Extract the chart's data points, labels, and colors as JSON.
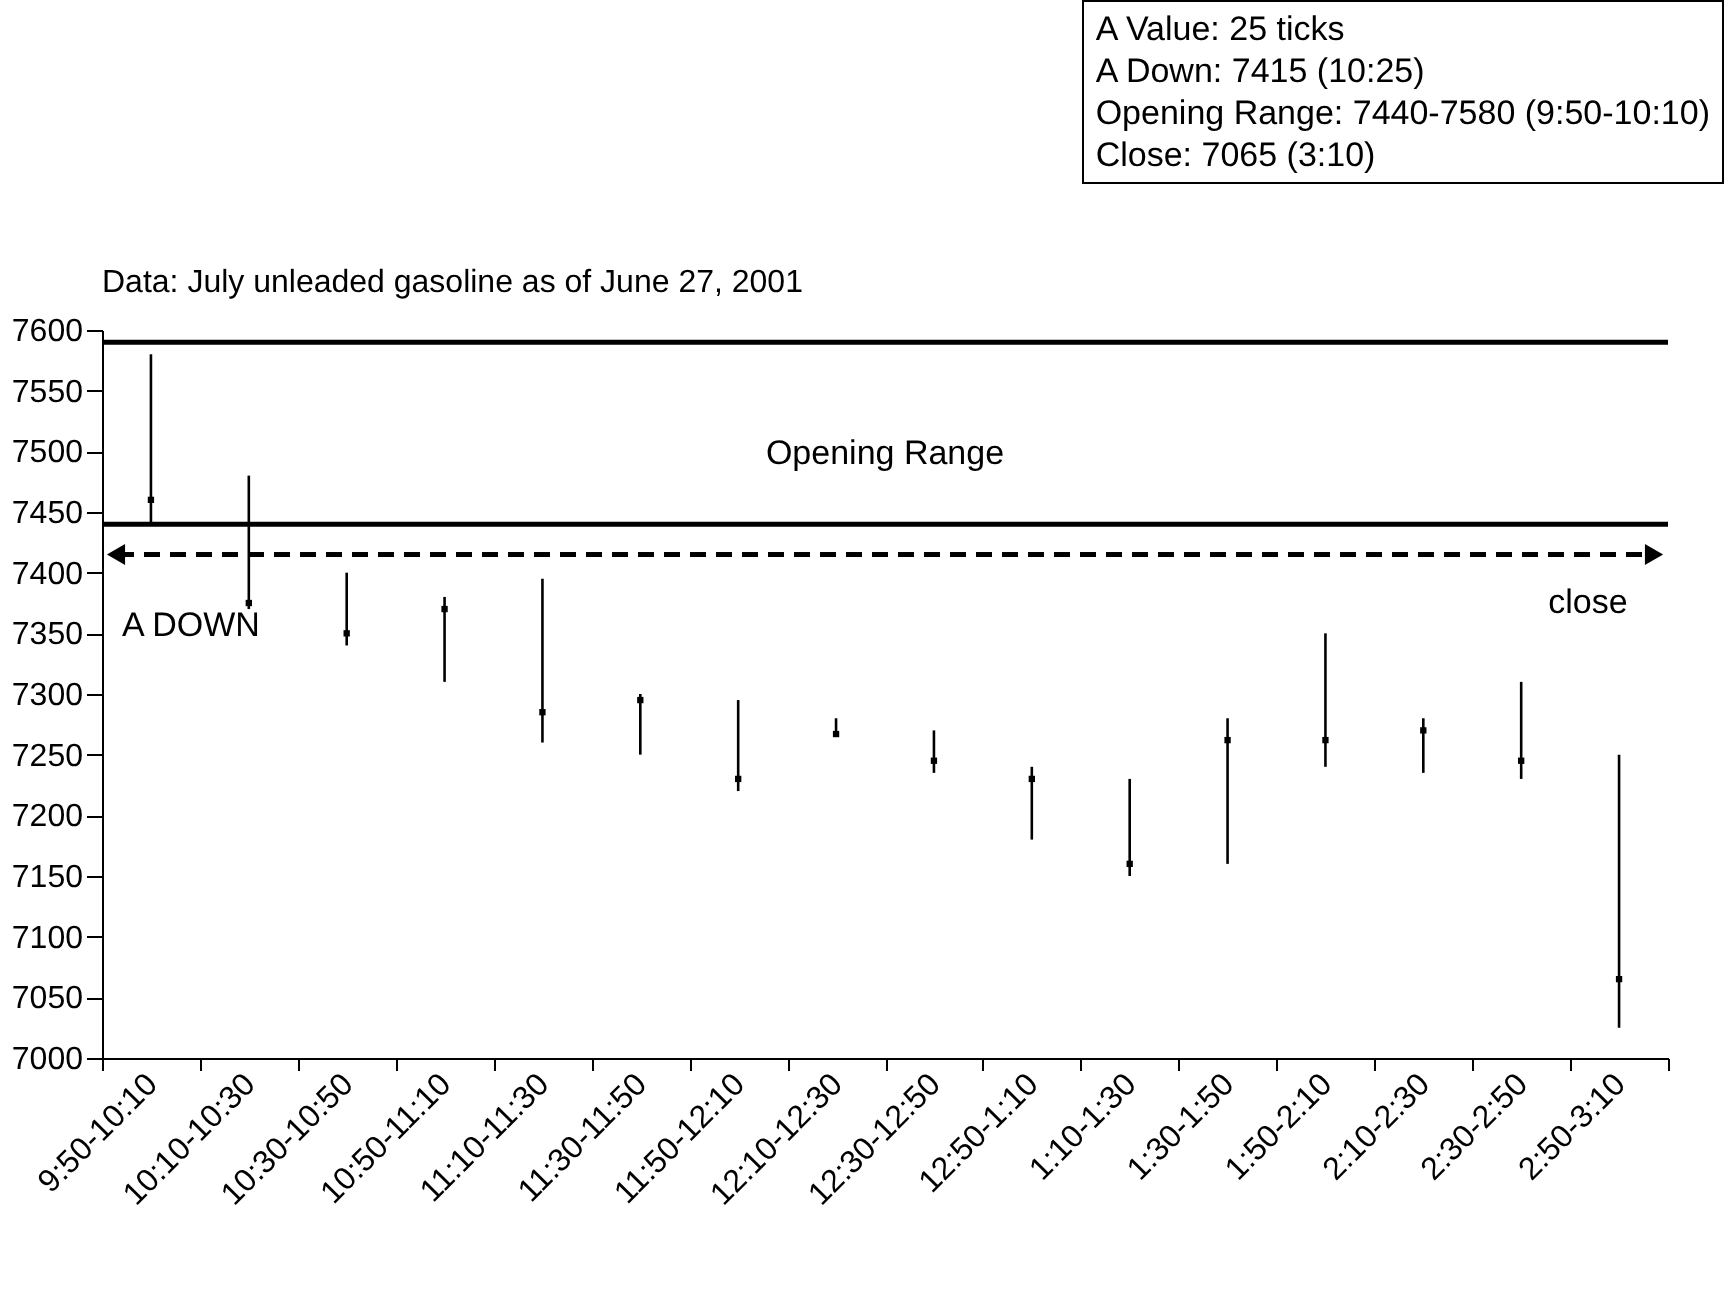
{
  "chart_data": {
    "type": "scatter",
    "marker": "square",
    "title": "Data: July unleaded gasoline as of June 27, 2001",
    "categories": [
      "9:50-10:10",
      "10:10-10:30",
      "10:30-10:50",
      "10:50-11:10",
      "11:10-11:30",
      "11:30-11:50",
      "11:50-12:10",
      "12:10-12:30",
      "12:30-12:50",
      "12:50-1:10",
      "1:10-1:30",
      "1:30-1:50",
      "1:50-2:10",
      "2:10-2:30",
      "2:30-2:50",
      "2:50-3:10"
    ],
    "values": [
      7460,
      7375,
      7350,
      7370,
      7285,
      7295,
      7230,
      7267,
      7245,
      7230,
      7160,
      7262,
      7262,
      7270,
      7245,
      7065
    ],
    "errors": [
      [
        7440,
        7580
      ],
      [
        7370,
        7480
      ],
      [
        7340,
        7400
      ],
      [
        7310,
        7380
      ],
      [
        7260,
        7395
      ],
      [
        7250,
        7300
      ],
      [
        7220,
        7295
      ],
      [
        7265,
        7280
      ],
      [
        7235,
        7270
      ],
      [
        7180,
        7240
      ],
      [
        7150,
        7230
      ],
      [
        7160,
        7280
      ],
      [
        7240,
        7350
      ],
      [
        7235,
        7280
      ],
      [
        7230,
        7310
      ],
      [
        7025,
        7250
      ]
    ],
    "color": "#000000",
    "ylim": [
      7000,
      7600
    ],
    "yticks": [
      7000,
      7050,
      7100,
      7150,
      7200,
      7250,
      7300,
      7350,
      7400,
      7450,
      7500,
      7550,
      7600
    ],
    "ref_lines": [
      {
        "axis": "y",
        "value": 7590,
        "color": "#000000",
        "line_style": "solid"
      },
      {
        "axis": "y",
        "value": 7440,
        "label": "Opening Range",
        "color": "#000000",
        "line_style": "solid"
      },
      {
        "axis": "y",
        "value": 7415,
        "label": "A DOWN",
        "color": "#000000",
        "line_style": "dashed"
      }
    ],
    "annotations": [
      "A Value: 25 ticks",
      "A Down: 7415 (10:25)",
      "Opening Range: 7440-7580 (9:50-10:10)",
      "Close: 7065 (3:10)",
      "close"
    ],
    "grid": false
  }
}
